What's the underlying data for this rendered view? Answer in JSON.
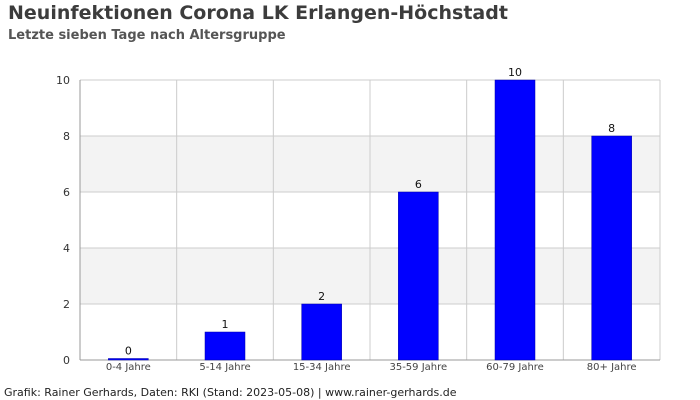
{
  "header": {
    "title": "Neuinfektionen Corona LK Erlangen-Höchstadt",
    "subtitle": "Letzte sieben Tage nach Altersgruppe"
  },
  "footer": {
    "credit": "Grafik: Rainer Gerhards, Daten: RKI (Stand: 2023-05-08) | www.rainer-gerhards.de"
  },
  "chart_data": {
    "type": "bar",
    "title": "Neuinfektionen Corona LK Erlangen-Höchstadt",
    "subtitle": "Letzte sieben Tage nach Altersgruppe",
    "categories": [
      "0-4 Jahre",
      "5-14 Jahre",
      "15-34 Jahre",
      "35-59 Jahre",
      "60-79 Jahre",
      "80+ Jahre"
    ],
    "values": [
      0,
      1,
      2,
      6,
      10,
      8
    ],
    "ylim": [
      0,
      10
    ],
    "yticks": [
      0,
      2,
      4,
      6,
      8,
      10
    ],
    "grid": true,
    "bar_color": "#0000ff",
    "band_color": "#f3f3f3",
    "grid_color": "#cccccc"
  }
}
